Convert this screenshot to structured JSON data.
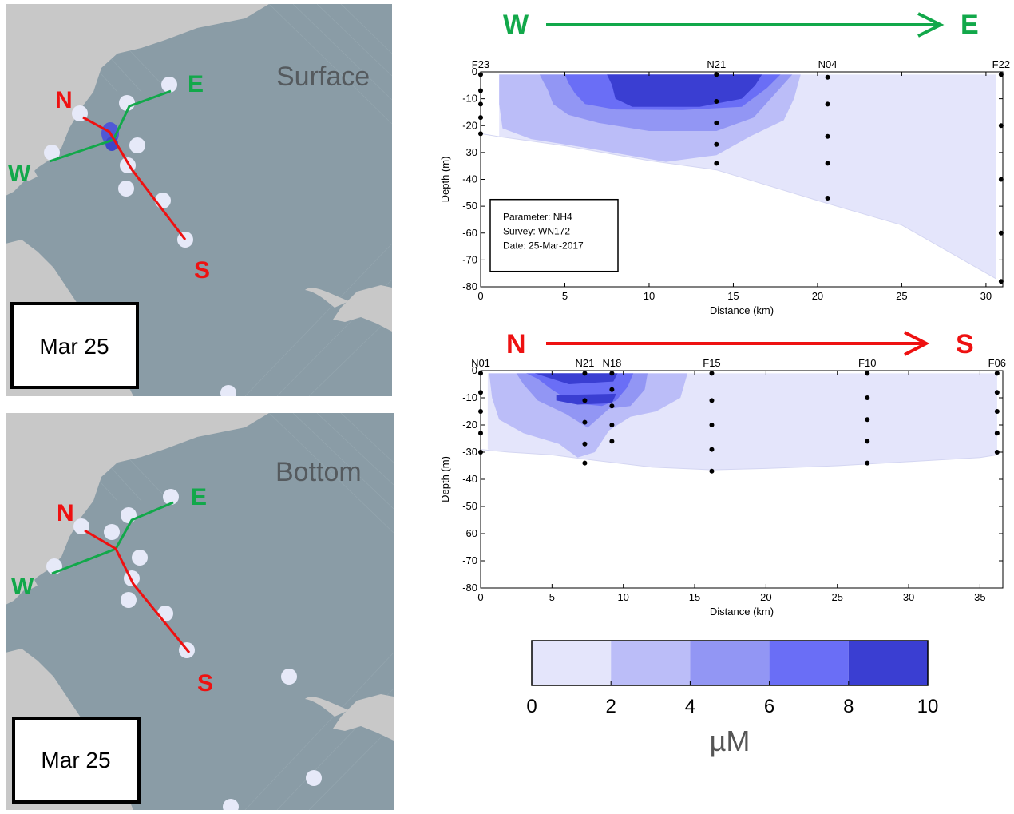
{
  "maps": {
    "surface": {
      "layer": "Surface",
      "date": "Mar 25",
      "labels": {
        "n": "N",
        "s": "S",
        "w": "W",
        "e": "E"
      }
    },
    "bottom": {
      "layer": "Bottom",
      "date": "Mar 25",
      "labels": {
        "n": "N",
        "s": "S",
        "w": "W",
        "e": "E"
      }
    }
  },
  "arrows": {
    "we": {
      "start": "W",
      "end": "E",
      "color": "#12a84a"
    },
    "ns": {
      "start": "N",
      "end": "S",
      "color": "#ee1111"
    }
  },
  "colors": {
    "land": "#c8c8c8",
    "water": "#8a9ca6",
    "station": "#e6e9f8",
    "high": "#5058d6"
  },
  "chart_data": [
    {
      "type": "contour",
      "transect": "W-E",
      "xlabel": "Distance (km)",
      "ylabel": "Depth (m)",
      "xlim": [
        0,
        31
      ],
      "ylim": [
        -80,
        0
      ],
      "xticks": [
        0,
        5,
        10,
        15,
        20,
        25,
        30
      ],
      "yticks": [
        0,
        -10,
        -20,
        -30,
        -40,
        -50,
        -60,
        -70,
        -80
      ],
      "stations": [
        {
          "name": "F23",
          "x": 0,
          "samples": [
            -1,
            -7,
            -12,
            -17,
            -23
          ]
        },
        {
          "name": "N21",
          "x": 14,
          "samples": [
            -1,
            -11,
            -19,
            -27,
            -34
          ]
        },
        {
          "name": "N04",
          "x": 20.6,
          "samples": [
            -2,
            -12,
            -24,
            -34,
            -47
          ]
        },
        {
          "name": "F22",
          "x": 30.9,
          "samples": [
            -1,
            -20,
            -40,
            -60,
            -78
          ]
        }
      ],
      "annotation": [
        "Parameter: NH4",
        "Survey: WN172",
        "Date: 25-Mar-2017"
      ],
      "bottom_depth": [
        [
          0,
          -23
        ],
        [
          1,
          -24
        ],
        [
          5,
          -27.5
        ],
        [
          10,
          -33
        ],
        [
          14,
          -36.5
        ],
        [
          20.6,
          -49
        ],
        [
          25,
          -57
        ],
        [
          30.6,
          -77
        ]
      ],
      "contours": [
        {
          "min": 0,
          "max": 2,
          "polygon": [
            [
              1.1,
              -1
            ],
            [
              30.6,
              -1
            ],
            [
              30.6,
              -77
            ],
            [
              25,
              -57
            ],
            [
              20.6,
              -49
            ],
            [
              14,
              -36.5
            ],
            [
              10,
              -33
            ],
            [
              5,
              -27.5
            ],
            [
              1.1,
              -24
            ]
          ]
        },
        {
          "min": 2,
          "max": 4,
          "polygon": [
            [
              1.1,
              -1
            ],
            [
              19,
              -1
            ],
            [
              18.6,
              -10
            ],
            [
              18,
              -18
            ],
            [
              16,
              -24
            ],
            [
              14,
              -31
            ],
            [
              11,
              -33.5
            ],
            [
              6,
              -28
            ],
            [
              3,
              -25
            ],
            [
              1.3,
              -21
            ],
            [
              1.1,
              -12
            ]
          ]
        },
        {
          "min": 4,
          "max": 6,
          "polygon": [
            [
              3.5,
              -1
            ],
            [
              18.5,
              -1
            ],
            [
              17.5,
              -8
            ],
            [
              16.2,
              -17
            ],
            [
              14,
              -22
            ],
            [
              10,
              -22
            ],
            [
              7,
              -19
            ],
            [
              5.2,
              -16
            ],
            [
              4.3,
              -12
            ],
            [
              4,
              -7
            ]
          ]
        },
        {
          "min": 6,
          "max": 8,
          "polygon": [
            [
              5,
              -1
            ],
            [
              17.8,
              -1
            ],
            [
              17,
              -6
            ],
            [
              15.5,
              -13
            ],
            [
              12,
              -14.2
            ],
            [
              8,
              -14
            ],
            [
              6.2,
              -12
            ],
            [
              5.6,
              -8
            ],
            [
              5.2,
              -4
            ]
          ]
        },
        {
          "min": 8,
          "max": 10,
          "polygon": [
            [
              7.5,
              -1
            ],
            [
              16.7,
              -1
            ],
            [
              16.3,
              -5
            ],
            [
              15.5,
              -10
            ],
            [
              13,
              -13
            ],
            [
              9,
              -13
            ],
            [
              8,
              -10
            ],
            [
              7.8,
              -5
            ]
          ]
        }
      ]
    },
    {
      "type": "contour",
      "transect": "N-S",
      "xlabel": "Distance (km)",
      "ylabel": "Depth (m)",
      "xlim": [
        0,
        36.6
      ],
      "ylim": [
        -80,
        0
      ],
      "xticks": [
        0,
        5,
        10,
        15,
        20,
        25,
        30,
        35
      ],
      "yticks": [
        0,
        -10,
        -20,
        -30,
        -40,
        -50,
        -60,
        -70,
        -80
      ],
      "stations": [
        {
          "name": "N01",
          "x": 0,
          "samples": [
            -1,
            -8,
            -15,
            -23,
            -30
          ]
        },
        {
          "name": "N21",
          "x": 7.3,
          "samples": [
            -1,
            -11,
            -19,
            -27,
            -34
          ]
        },
        {
          "name": "N18",
          "x": 9.2,
          "samples": [
            -1,
            -7,
            -13,
            -20,
            -26
          ]
        },
        {
          "name": "F15",
          "x": 16.2,
          "samples": [
            -1,
            -11,
            -20,
            -29,
            -37
          ]
        },
        {
          "name": "F10",
          "x": 27.1,
          "samples": [
            -1,
            -10,
            -18,
            -26,
            -34
          ]
        },
        {
          "name": "F06",
          "x": 36.2,
          "samples": [
            -1,
            -8,
            -15,
            -23,
            -30
          ]
        }
      ],
      "bottom_depth": [
        [
          0,
          -29
        ],
        [
          2,
          -30
        ],
        [
          5,
          -31
        ],
        [
          8,
          -33
        ],
        [
          12,
          -35.5
        ],
        [
          16.2,
          -36.5
        ],
        [
          20,
          -36
        ],
        [
          25,
          -35
        ],
        [
          30,
          -33.5
        ],
        [
          35,
          -32
        ],
        [
          36.2,
          -31
        ]
      ],
      "contours": [
        {
          "min": 0,
          "max": 2,
          "polygon": [
            [
              0.5,
              -1
            ],
            [
              36.2,
              -1
            ],
            [
              36.2,
              -31
            ],
            [
              35,
              -32
            ],
            [
              30,
              -33.5
            ],
            [
              25,
              -35
            ],
            [
              20,
              -36
            ],
            [
              16.2,
              -36.5
            ],
            [
              12,
              -35.5
            ],
            [
              8,
              -33
            ],
            [
              5,
              -31
            ],
            [
              2,
              -30
            ],
            [
              0.5,
              -29
            ]
          ]
        },
        {
          "min": 2,
          "max": 4,
          "polygon": [
            [
              0.6,
              -1
            ],
            [
              14.5,
              -1
            ],
            [
              14,
              -10
            ],
            [
              12.3,
              -15
            ],
            [
              10.5,
              -17
            ],
            [
              9,
              -22
            ],
            [
              8,
              -30
            ],
            [
              6.8,
              -32
            ],
            [
              5.5,
              -27
            ],
            [
              3,
              -23
            ],
            [
              1.3,
              -18
            ],
            [
              0.8,
              -10
            ]
          ]
        },
        {
          "min": 4,
          "max": 6,
          "polygon": [
            [
              2.5,
              -1
            ],
            [
              11.7,
              -1
            ],
            [
              11.5,
              -7
            ],
            [
              10.5,
              -13
            ],
            [
              9,
              -14
            ],
            [
              7.5,
              -21
            ],
            [
              6,
              -16
            ],
            [
              4,
              -11
            ],
            [
              3,
              -5
            ]
          ]
        },
        {
          "min": 6,
          "max": 8,
          "polygon": [
            [
              3.2,
              -1
            ],
            [
              10.7,
              -1
            ],
            [
              10.3,
              -6
            ],
            [
              9.5,
              -11
            ],
            [
              8.5,
              -13
            ],
            [
              6.5,
              -12
            ],
            [
              5,
              -7
            ],
            [
              4,
              -3
            ]
          ]
        },
        {
          "min": 8,
          "max": 10,
          "polygon": [
            [
              3.8,
              -1
            ],
            [
              9.6,
              -1
            ],
            [
              9.3,
              -4
            ],
            [
              6.2,
              -5
            ],
            [
              5,
              -3
            ]
          ]
        },
        {
          "min": 8,
          "max": 10,
          "polygon": [
            [
              5.3,
              -9
            ],
            [
              9.5,
              -8.5
            ],
            [
              9.2,
              -12
            ],
            [
              6.8,
              -12.5
            ],
            [
              5.3,
              -11
            ]
          ]
        }
      ]
    },
    {
      "type": "colorbar",
      "unit": "µM",
      "ticks": [
        0,
        2,
        4,
        6,
        8,
        10
      ],
      "bins": [
        {
          "min": 0,
          "max": 2,
          "color": "#e4e5fb"
        },
        {
          "min": 2,
          "max": 4,
          "color": "#bbbdf8"
        },
        {
          "min": 4,
          "max": 6,
          "color": "#9296f4"
        },
        {
          "min": 6,
          "max": 8,
          "color": "#6a6ef6"
        },
        {
          "min": 8,
          "max": 10,
          "color": "#3a3ed2"
        }
      ]
    }
  ]
}
